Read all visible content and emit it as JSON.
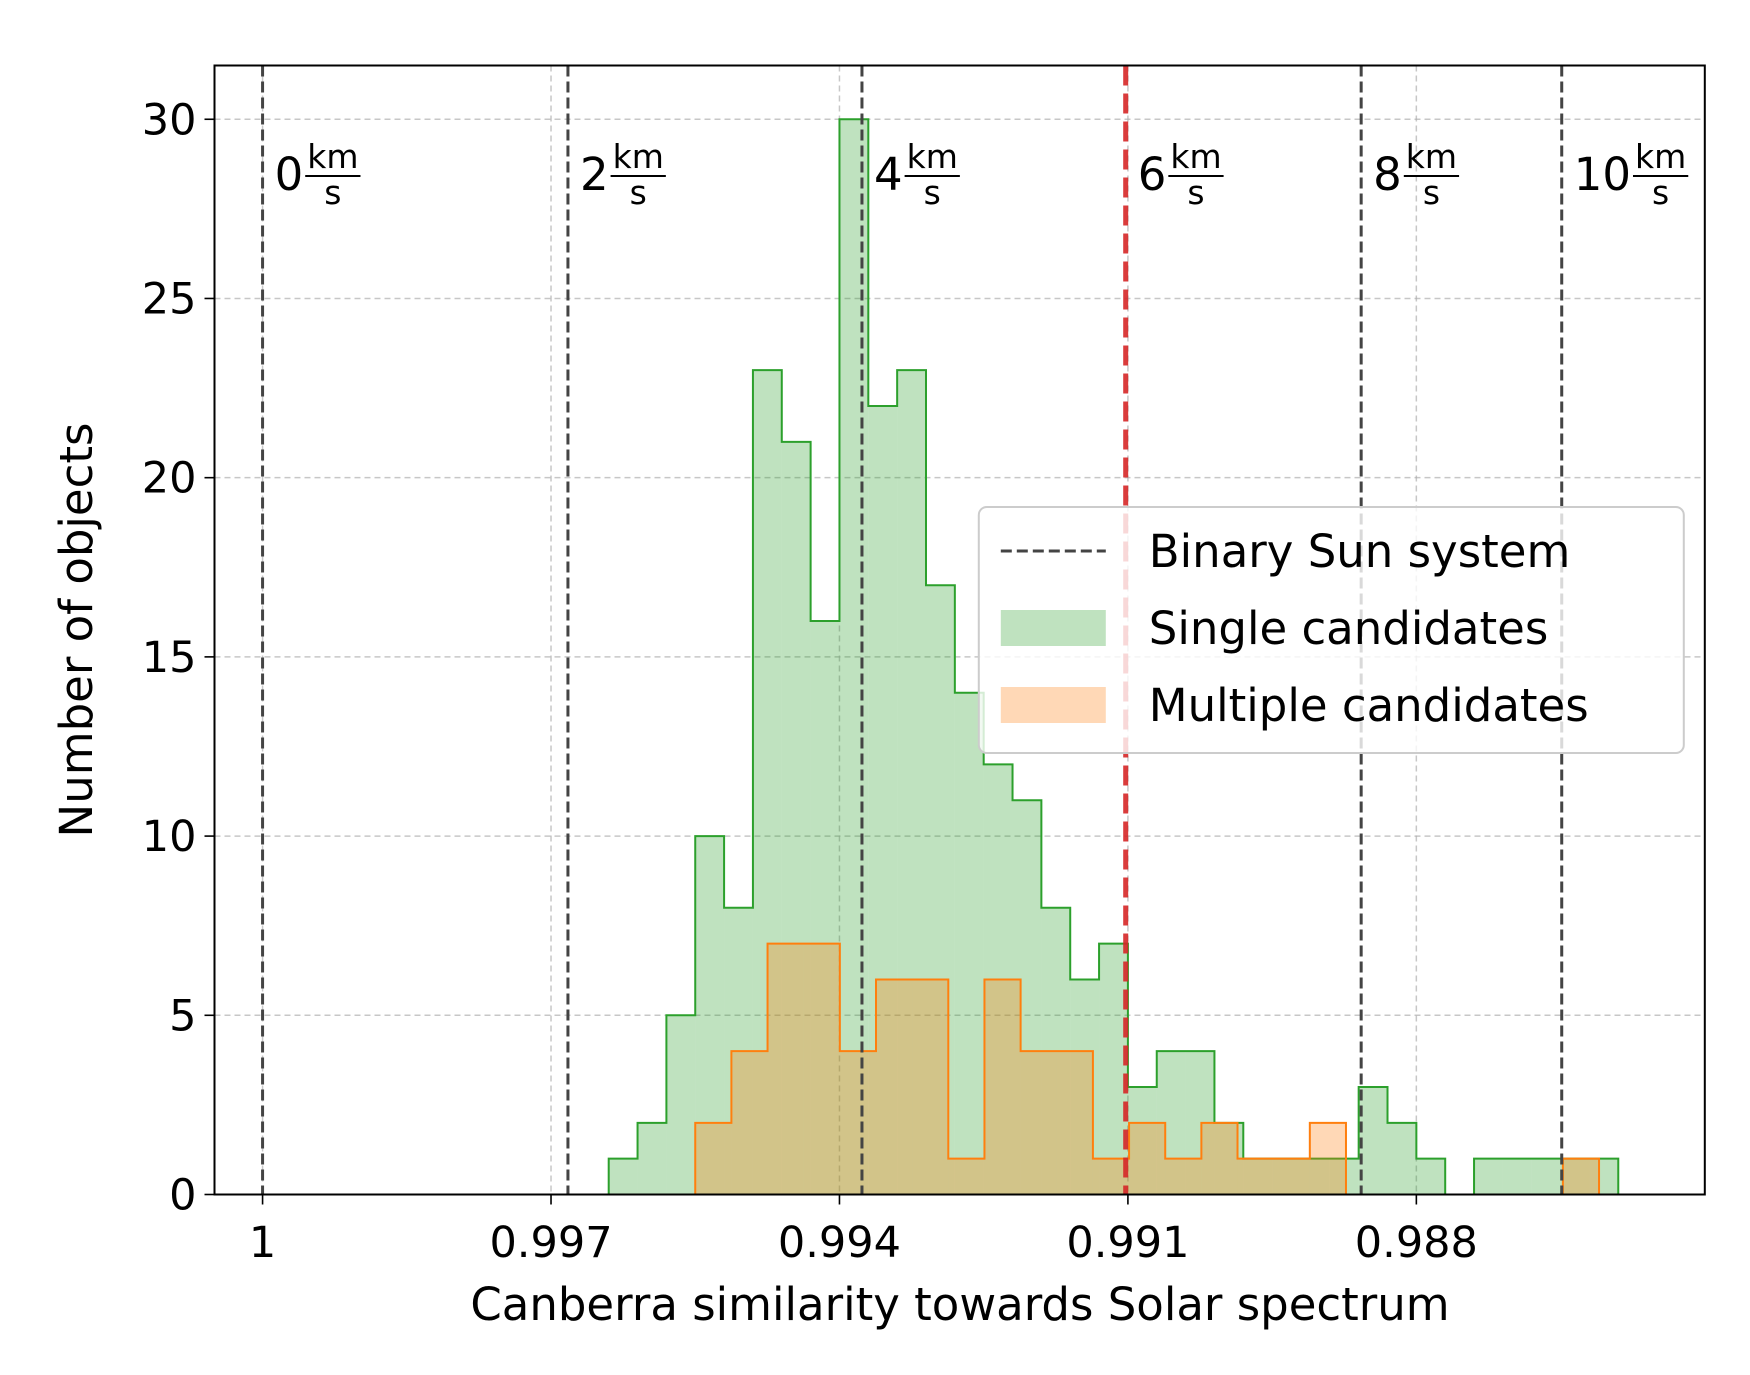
{
  "chart_data": {
    "type": "histogram",
    "xlabel": "Canberra similarity towards Solar spectrum",
    "ylabel": "Number of objects",
    "xlim": [
      1.0005,
      0.985
    ],
    "xticks": [
      1,
      0.997,
      0.994,
      0.991,
      0.988
    ],
    "ylim": [
      0,
      31.5
    ],
    "yticks": [
      0,
      5,
      10,
      15,
      20,
      25,
      30
    ],
    "grid": true,
    "legend_loc": "center right",
    "series": [
      {
        "name": "Single candidates",
        "color": "#2ca02c",
        "bins": [
          0.9964,
          0.9961,
          0.9958,
          0.9955,
          0.9952,
          0.9949,
          0.9946,
          0.9943,
          0.994,
          0.9937,
          0.9934,
          0.9931,
          0.9928,
          0.9925,
          0.9922,
          0.9919,
          0.9916,
          0.9913,
          0.991,
          0.9907,
          0.9904,
          0.9901,
          0.9898,
          0.9895,
          0.9892,
          0.9889,
          0.9886,
          0.9883,
          0.988,
          0.9877,
          0.9874,
          0.9871,
          0.9868,
          0.9865,
          0.9862,
          0.9859
        ],
        "values": [
          1,
          2,
          5,
          10,
          8,
          23,
          21,
          16,
          30,
          22,
          23,
          17,
          14,
          12,
          11,
          8,
          6,
          7,
          3,
          4,
          4,
          2,
          1,
          1,
          1,
          1,
          3,
          2,
          1,
          0,
          1,
          1,
          1,
          1,
          1
        ]
      },
      {
        "name": "Multiple candidates",
        "color": "#ff7f0e",
        "bins": [
          0.9955,
          0.995124,
          0.994748,
          0.994372,
          0.993996,
          0.99362,
          0.993244,
          0.992868,
          0.992492,
          0.992116,
          0.99174,
          0.991364,
          0.990988,
          0.990612,
          0.990236,
          0.98986,
          0.989484,
          0.989108,
          0.988732,
          0.988356,
          0.98798,
          0.987604,
          0.987228,
          0.986852,
          0.986476,
          0.9861
        ],
        "values": [
          2,
          4,
          7,
          7,
          4,
          6,
          6,
          1,
          6,
          4,
          4,
          1,
          2,
          1,
          2,
          1,
          1,
          2,
          0,
          0,
          0,
          0,
          0,
          0,
          1
        ]
      }
    ],
    "reference_lines": {
      "name": "Binary Sun system",
      "color": "#444444",
      "unit": {
        "numerator": "km",
        "denominator": "s"
      },
      "lines": [
        {
          "value": 1.0,
          "label": "0",
          "color": "#444444"
        },
        {
          "value": 0.996824,
          "label": "2",
          "color": "#444444"
        },
        {
          "value": 0.993766,
          "label": "4",
          "color": "#444444"
        },
        {
          "value": 0.991023,
          "label": "6",
          "color": "#d62728"
        },
        {
          "value": 0.988574,
          "label": "8",
          "color": "#444444"
        },
        {
          "value": 0.986488,
          "label": "10",
          "color": "#444444"
        }
      ]
    }
  }
}
